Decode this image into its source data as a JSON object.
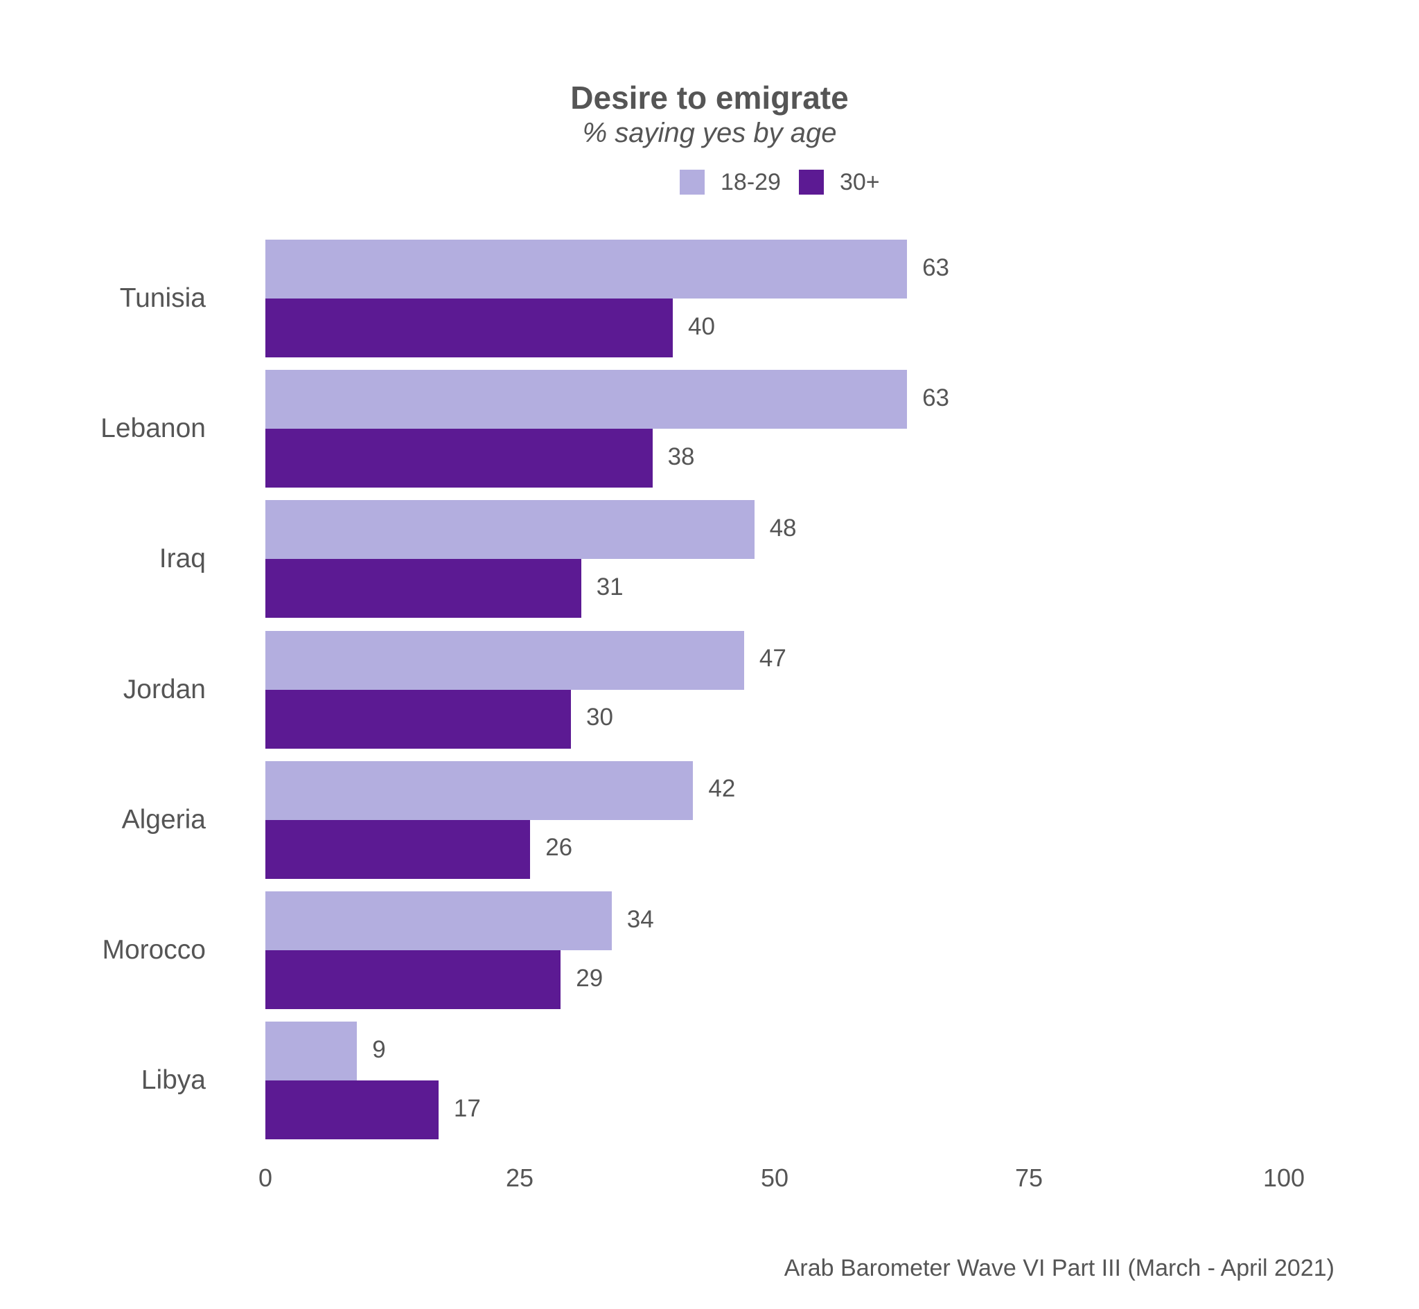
{
  "header": {
    "title": "Desire to emigrate",
    "subtitle": "% saying yes by age"
  },
  "legend": [
    {
      "label": "18-29",
      "color": "#b3aedf"
    },
    {
      "label": "30+",
      "color": "#5c1a93"
    }
  ],
  "x_axis": {
    "ticks": [
      "0",
      "25",
      "50",
      "75",
      "100"
    ]
  },
  "source": "Arab Barometer Wave VI Part III (March - April 2021)",
  "chart_data": {
    "type": "bar",
    "orientation": "horizontal",
    "title": "Desire to emigrate",
    "subtitle": "% saying yes by age",
    "categories": [
      "Tunisia",
      "Lebanon",
      "Iraq",
      "Jordan",
      "Algeria",
      "Morocco",
      "Libya"
    ],
    "series": [
      {
        "name": "18-29",
        "color": "#b3aedf",
        "values": [
          63,
          63,
          48,
          47,
          42,
          34,
          9
        ]
      },
      {
        "name": "30+",
        "color": "#5c1a93",
        "values": [
          40,
          38,
          31,
          30,
          26,
          29,
          17
        ]
      }
    ],
    "xlabel": "",
    "ylabel": "",
    "xlim": [
      0,
      100
    ],
    "xticks": [
      0,
      25,
      50,
      75,
      100
    ],
    "grid": false,
    "legend_position": "top",
    "data_labels": true,
    "caption": "Arab Barometer Wave VI Part III (March - April 2021)"
  }
}
